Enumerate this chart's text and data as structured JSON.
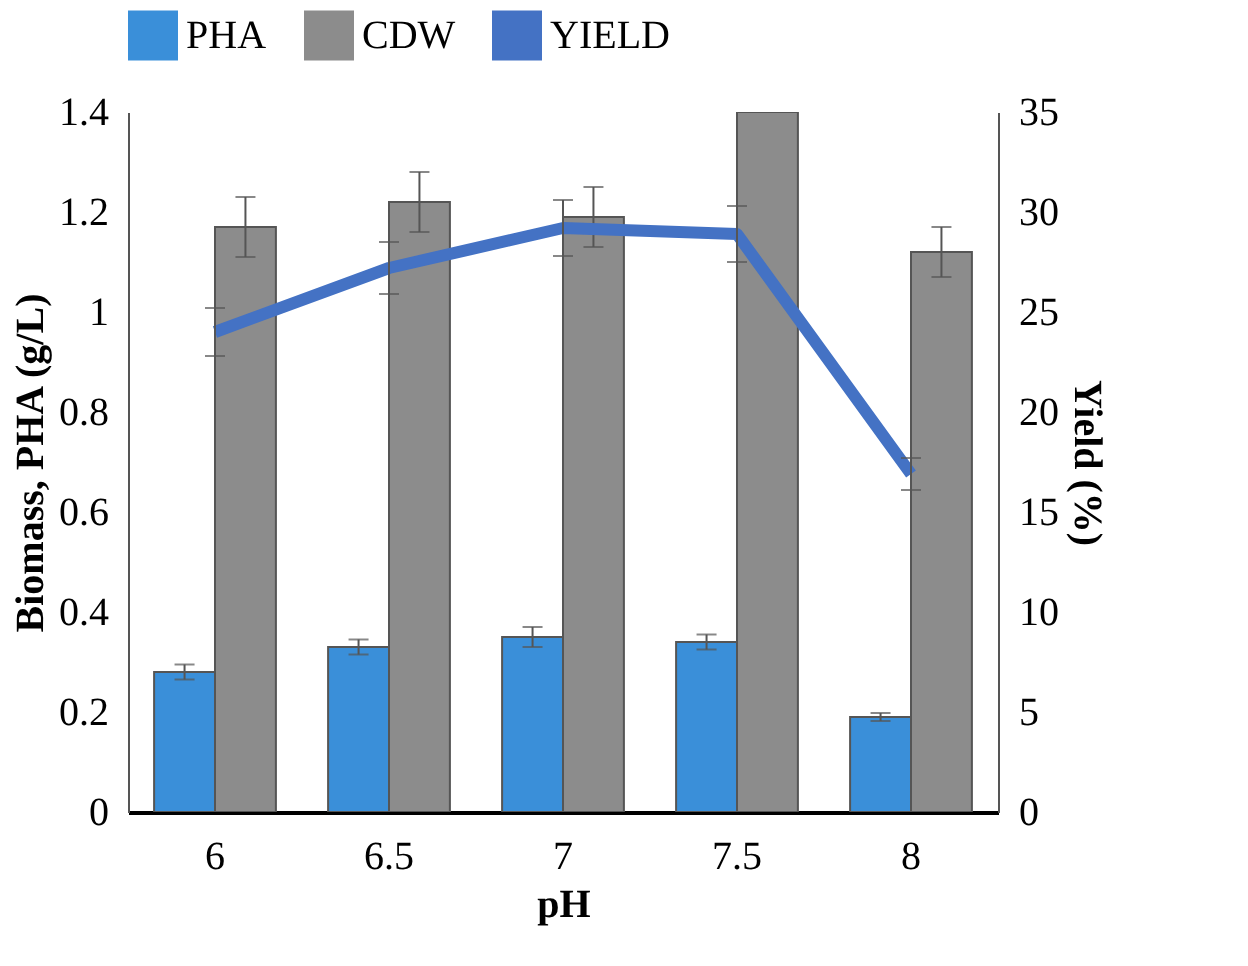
{
  "chart_data": {
    "type": "bar",
    "xlabel": "pH",
    "ylabel": "Biomass, PHA (g/L)",
    "y2label": "Yield (%)",
    "categories": [
      "6",
      "6.5",
      "7",
      "7.5",
      "8"
    ],
    "series": [
      {
        "name": "PHA",
        "color": "#3a8fd9",
        "values": [
          0.28,
          0.33,
          0.35,
          0.34,
          0.19
        ],
        "errors": [
          0.015,
          0.015,
          0.02,
          0.015,
          0.008
        ]
      },
      {
        "name": "CDW",
        "color": "#8c8c8c",
        "values": [
          1.17,
          1.22,
          1.19,
          1.4,
          1.12
        ],
        "errors": [
          0.06,
          0.06,
          0.06,
          null,
          0.05
        ]
      },
      {
        "name": "YIELD",
        "type": "line",
        "axis": "y2",
        "color": "#4472c4",
        "values": [
          24,
          27.2,
          29.2,
          28.9,
          16.9
        ],
        "errors": [
          1.2,
          1.3,
          1.4,
          1.4,
          0.8
        ]
      }
    ],
    "ylim": [
      0,
      1.4
    ],
    "yticks": [
      0,
      0.2,
      0.4,
      0.6,
      0.8,
      1,
      1.2,
      1.4
    ],
    "y2lim": [
      0,
      35
    ],
    "y2ticks": [
      0,
      5,
      10,
      15,
      20,
      25,
      30,
      35
    ],
    "grid": false,
    "legend": "top",
    "marker": "none",
    "line_style": "solid"
  }
}
